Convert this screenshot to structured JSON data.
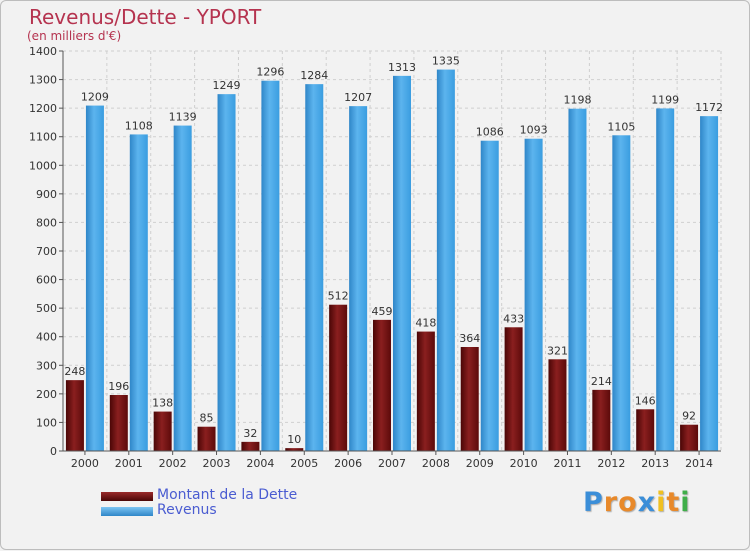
{
  "title": "Revenus/Dette - YPORT",
  "subtitle": "(en milliers d'€)",
  "logo": {
    "text": "Proxiti",
    "letter_colors": [
      "#3b8ed8",
      "#e8892a",
      "#e8892a",
      "#3b8ed8",
      "#f0c020",
      "#e8892a",
      "#3fae49"
    ]
  },
  "legend": [
    {
      "label": "Montant de la Dette",
      "color": "#6d0f0f"
    },
    {
      "label": "Revenus",
      "color": "#3a9de0"
    }
  ],
  "chart_data": {
    "type": "bar",
    "title": "Revenus/Dette - YPORT",
    "subtitle": "(en milliers d'€)",
    "categories": [
      "2000",
      "2001",
      "2002",
      "2003",
      "2004",
      "2005",
      "2006",
      "2007",
      "2008",
      "2009",
      "2010",
      "2011",
      "2012",
      "2013",
      "2014"
    ],
    "series": [
      {
        "name": "Montant de la Dette",
        "color": "#6d0f0f",
        "values": [
          248,
          196,
          138,
          85,
          32,
          10,
          512,
          459,
          418,
          364,
          433,
          321,
          214,
          146,
          92
        ]
      },
      {
        "name": "Revenus",
        "color": "#3a9de0",
        "values": [
          1209,
          1108,
          1139,
          1249,
          1296,
          1284,
          1207,
          1313,
          1335,
          1086,
          1093,
          1198,
          1105,
          1199,
          1172
        ]
      }
    ],
    "ylim": [
      0,
      1400
    ],
    "yticks": [
      0,
      100,
      200,
      300,
      400,
      500,
      600,
      700,
      800,
      900,
      1000,
      1100,
      1200,
      1300,
      1400
    ],
    "grid": true,
    "legend_position": "bottom-left"
  }
}
